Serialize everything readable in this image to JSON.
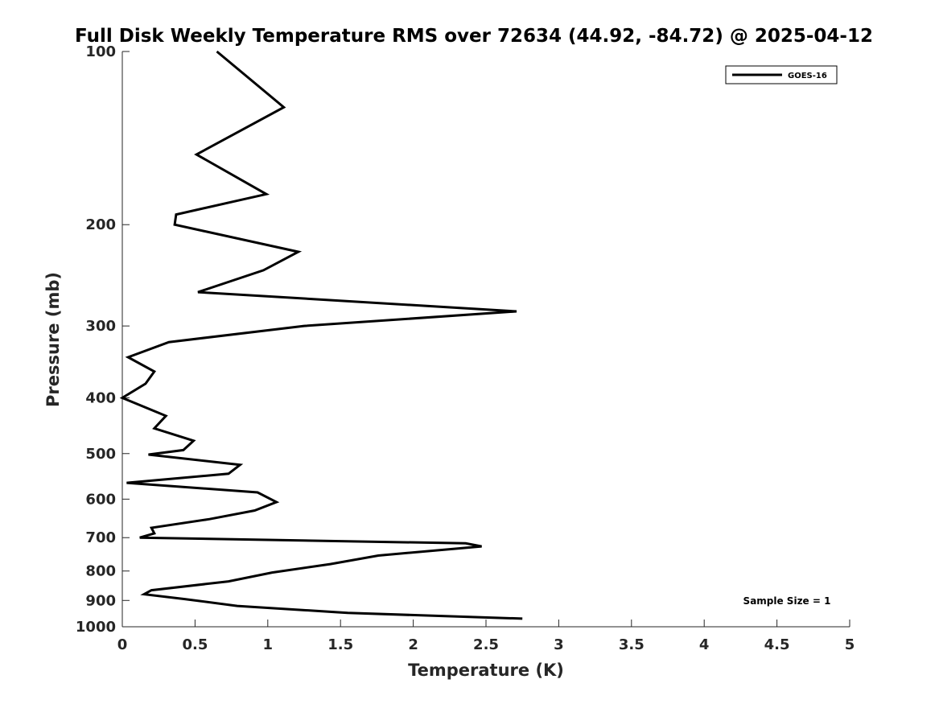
{
  "chart_data": {
    "type": "line",
    "title": "Full Disk Weekly Temperature RMS over 72634 (44.92, -84.72) @ 2025-04-12",
    "xlabel": "Temperature (K)",
    "ylabel": "Pressure (mb)",
    "xlim": [
      0,
      5
    ],
    "ylim": [
      1000,
      100
    ],
    "y_scale": "log",
    "y_reversed": true,
    "x_ticks": [
      0,
      0.5,
      1,
      1.5,
      2,
      2.5,
      3,
      3.5,
      4,
      4.5,
      5
    ],
    "x_tick_labels": [
      "0",
      "0.5",
      "1",
      "1.5",
      "2",
      "2.5",
      "3",
      "3.5",
      "4",
      "4.5",
      "5"
    ],
    "y_ticks": [
      100,
      200,
      300,
      400,
      500,
      600,
      700,
      800,
      900,
      1000
    ],
    "y_tick_labels": [
      "100",
      "200",
      "300",
      "400",
      "500",
      "600",
      "700",
      "800",
      "900",
      "1000"
    ],
    "grid": false,
    "legend": {
      "placement": "top-right",
      "entries": [
        "GOES-16"
      ]
    },
    "annotation": "Sample Size = 1",
    "series": [
      {
        "name": "GOES-16",
        "color": "#000000",
        "points": [
          [
            0.65,
            100
          ],
          [
            1.11,
            125
          ],
          [
            0.51,
            151
          ],
          [
            0.99,
            177
          ],
          [
            0.37,
            192
          ],
          [
            0.36,
            200
          ],
          [
            1.21,
            223
          ],
          [
            0.97,
            240
          ],
          [
            0.52,
            262
          ],
          [
            2.71,
            283
          ],
          [
            1.25,
            300
          ],
          [
            0.32,
            320
          ],
          [
            0.04,
            340
          ],
          [
            0.22,
            360
          ],
          [
            0.16,
            378
          ],
          [
            0.0,
            400
          ],
          [
            0.3,
            430
          ],
          [
            0.22,
            452
          ],
          [
            0.49,
            475
          ],
          [
            0.42,
            493
          ],
          [
            0.18,
            502
          ],
          [
            0.81,
            523
          ],
          [
            0.73,
            542
          ],
          [
            0.03,
            562
          ],
          [
            0.93,
            584
          ],
          [
            1.06,
            607
          ],
          [
            0.91,
            628
          ],
          [
            0.6,
            650
          ],
          [
            0.2,
            673
          ],
          [
            0.22,
            688
          ],
          [
            0.12,
            700
          ],
          [
            2.36,
            716
          ],
          [
            2.47,
            725
          ],
          [
            1.76,
            752
          ],
          [
            1.43,
            778
          ],
          [
            1.03,
            805
          ],
          [
            0.73,
            834
          ],
          [
            0.2,
            864
          ],
          [
            0.15,
            878
          ],
          [
            0.43,
            895
          ],
          [
            0.79,
            920
          ],
          [
            1.55,
            946
          ],
          [
            2.75,
            968
          ]
        ]
      }
    ]
  }
}
